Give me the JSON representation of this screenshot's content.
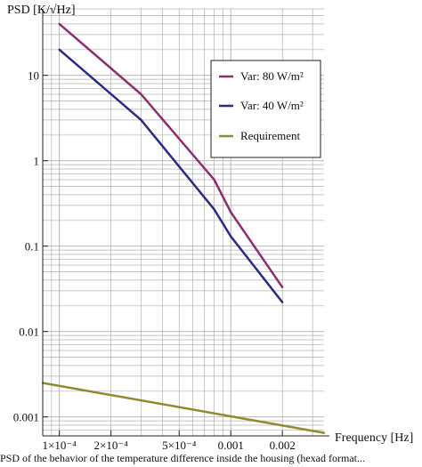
{
  "chart_data": {
    "type": "line",
    "title": "",
    "ylabel": "PSD [K/√Hz]",
    "xlabel": "Frequency  [Hz]",
    "xscale": "log",
    "yscale": "log",
    "xlim": [
      8e-05,
      0.0035
    ],
    "ylim": [
      0.0006,
      60
    ],
    "x_tick_labels": [
      {
        "value": 0.0001,
        "label": "1×10⁻⁴"
      },
      {
        "value": 0.0002,
        "label": "2×10⁻⁴"
      },
      {
        "value": 0.0005,
        "label": "5×10⁻⁴"
      },
      {
        "value": 0.001,
        "label": "0.001"
      },
      {
        "value": 0.002,
        "label": "0.002"
      }
    ],
    "y_tick_labels": [
      {
        "value": 10,
        "label": "10"
      },
      {
        "value": 1,
        "label": "1"
      },
      {
        "value": 0.1,
        "label": "0.1"
      },
      {
        "value": 0.01,
        "label": "0.01"
      },
      {
        "value": 0.001,
        "label": "0.001"
      }
    ],
    "grid": true,
    "legend_position": "top-right",
    "series": [
      {
        "name": "Var: 80 W/m²",
        "color": "#8e2c6c",
        "x": [
          0.0001,
          0.0003,
          0.0008,
          0.001,
          0.002
        ],
        "y": [
          40,
          6,
          0.6,
          0.25,
          0.033
        ]
      },
      {
        "name": "Var: 40 W/m²",
        "color": "#2b2a8c",
        "x": [
          0.0001,
          0.0003,
          0.0008,
          0.001,
          0.002
        ],
        "y": [
          20,
          3,
          0.27,
          0.13,
          0.022
        ]
      },
      {
        "name": "Requirement",
        "color": "#8f8a2b",
        "x": [
          8e-05,
          0.0035
        ],
        "y": [
          0.0025,
          0.00065
        ]
      }
    ]
  },
  "caption": "PSD of the behavior of the temperature difference inside the housing (hexad format..."
}
